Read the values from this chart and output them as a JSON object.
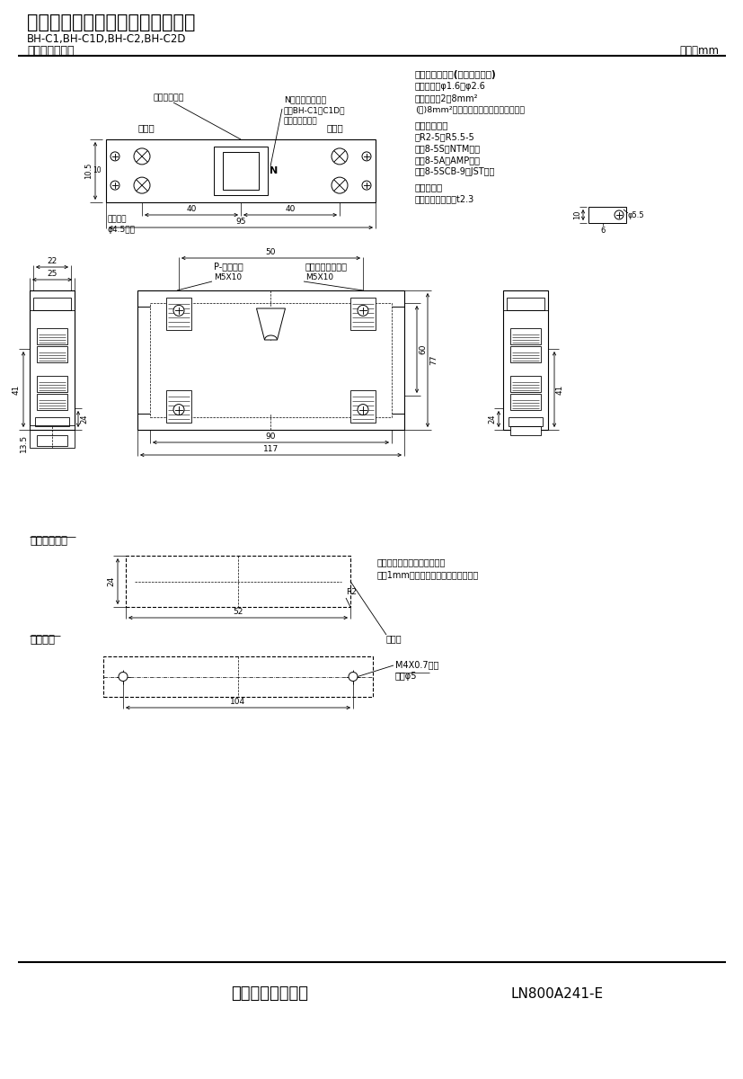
{
  "title": "三菱分電盤用ノーヒューズ遮断器",
  "subtitle": "BH-C1,BH-C1D,BH-C2,BH-C2D",
  "subtitle2": "標準外形寸法図",
  "unit_label": "単位：mm",
  "company": "三菱電機株式会社",
  "doc_number": "LN800A241-E",
  "bg_color": "#ffffff",
  "lc": "#000000",
  "tc": "#000000",
  "rt_title1": "適合電線サイズ(負荷端子のみ)",
  "rt_line1a": "　単線　：φ1.6～φ2.6",
  "rt_line1b": "　より線：2～8mm²",
  "rt_line1c": "(注)8mm²電線は圧着端子をご使用下さい",
  "rt_title2": "適合圧着端子",
  "rt_line2a": "　R2-5～R5.5-5",
  "rt_line2b": "　　8-5S（NTM社）",
  "rt_line2c": "　　8-5A（AMP社）",
  "rt_line2d": "　　8-5SCB-9（JST社）",
  "rt_title3": "導帯加工図",
  "rt_line3a": "　最大導帯板厚　t2.3",
  "label_tv_center": "遮断器の中心",
  "label_dengen": "電源側",
  "label_fuka": "負荷側",
  "label_N_note1": "N（中性線記号）",
  "label_N_note2": "注：BH-C1，C1D形",
  "label_N_note3": "にのみ付きます",
  "label_clip": "取付つめ",
  "label_clip2": "φ4.5長穴",
  "label_P_screw": "P-なべねじ",
  "label_P_screw2": "M5X10",
  "label_S_screw": "セルフアップねじ",
  "label_S_screw2": "M5X10",
  "label_omote": "表板穴明寸法",
  "label_ana": "穴明寸法",
  "label_note_p1": "穴明寸法は遮断器窓枠に対し",
  "label_note_p2": "片側1mmの隙間をもたせた寸法です。",
  "label_shaheiki": "遮断器",
  "label_screw2": "M4X0.7ねじ",
  "label_screw2b": "又はφ5"
}
